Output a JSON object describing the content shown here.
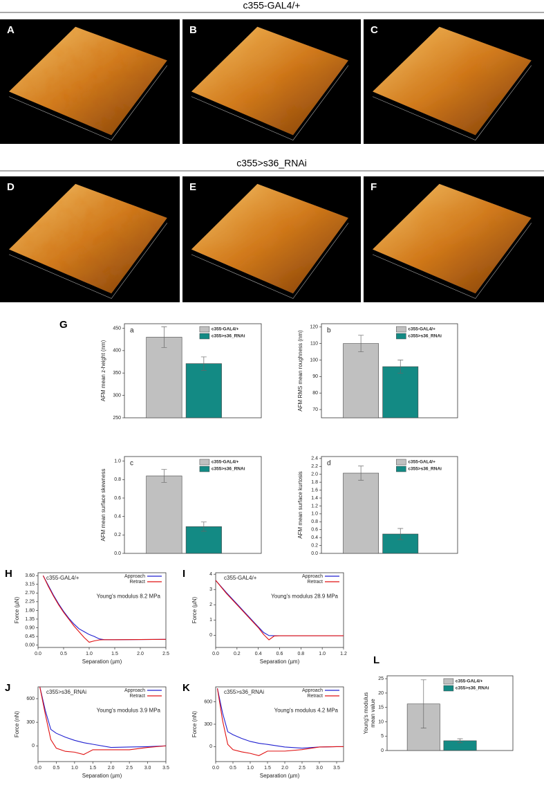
{
  "headers": [
    "c355-GAL4/+",
    "c355>s36_RNAi"
  ],
  "afm_panels": [
    "A",
    "B",
    "C",
    "D",
    "E",
    "F"
  ],
  "group_label": "G",
  "chart_data": [
    {
      "type": "bar",
      "label": "a",
      "ylabel": "AFM mean z-height (nm)",
      "categories": [
        null
      ],
      "series": [
        {
          "name": "c355-GAL4/+",
          "color": "#c0c0c0",
          "values": [
            430
          ],
          "errors": [
            23
          ]
        },
        {
          "name": "c355>s36_RNAi",
          "color": "#138a84",
          "values": [
            371
          ],
          "errors": [
            15
          ]
        }
      ],
      "ylim": [
        250,
        460
      ],
      "yticks": [
        250,
        300,
        350,
        400,
        450
      ]
    },
    {
      "type": "bar",
      "label": "b",
      "ylabel": "AFM RMS mean roughness (nm)",
      "categories": [
        null
      ],
      "series": [
        {
          "name": "c355-GAL4/+",
          "color": "#c0c0c0",
          "values": [
            110
          ],
          "errors": [
            5
          ]
        },
        {
          "name": "c355>s36_RNAi",
          "color": "#138a84",
          "values": [
            96
          ],
          "errors": [
            4
          ]
        }
      ],
      "ylim": [
        65,
        122
      ],
      "yticks": [
        70,
        80,
        90,
        100,
        110,
        120
      ]
    },
    {
      "type": "bar",
      "label": "c",
      "ylabel": "AFM mean surface skewness",
      "categories": [
        null
      ],
      "series": [
        {
          "name": "c355-GAL4/+",
          "color": "#c0c0c0",
          "values": [
            0.84
          ],
          "errors": [
            0.07
          ]
        },
        {
          "name": "c355>s36_RNAi",
          "color": "#138a84",
          "values": [
            0.29
          ],
          "errors": [
            0.05
          ]
        }
      ],
      "ylim": [
        0,
        1.05
      ],
      "yticks": [
        {
          "value": 0,
          "label": "0.0"
        },
        0.2,
        0.4,
        0.6,
        0.8,
        {
          "value": 1,
          "label": "1.0"
        }
      ]
    },
    {
      "type": "bar",
      "label": "d",
      "ylabel": "AFM mean surface kurtosis",
      "categories": [
        null
      ],
      "series": [
        {
          "name": "c355-GAL4/+",
          "color": "#c0c0c0",
          "values": [
            2.03
          ],
          "errors": [
            0.18
          ]
        },
        {
          "name": "c355>s36_RNAi",
          "color": "#138a84",
          "values": [
            0.49
          ],
          "errors": [
            0.14
          ]
        }
      ],
      "ylim": [
        0,
        2.45
      ],
      "yticks": [
        {
          "value": 0,
          "label": "0.0"
        },
        0.2,
        0.4,
        0.6,
        0.8,
        {
          "value": 1,
          "label": "1.0"
        },
        1.2,
        1.4,
        1.6,
        1.8,
        {
          "value": 2,
          "label": "2.0"
        },
        2.2,
        2.4
      ]
    },
    {
      "type": "line",
      "panel": "H",
      "xlabel": "Separation (µm)",
      "ylabel": "Force (µN)",
      "annotations": [
        "c355-GAL4/+",
        "Young's modulus 8.2 MPa"
      ],
      "x": [
        0.1,
        0.2,
        0.3,
        0.4,
        0.5,
        0.6,
        0.7,
        0.8,
        0.9,
        1.0,
        1.1,
        1.2,
        1.3,
        1.5,
        2.0,
        2.5
      ],
      "series": [
        {
          "name": "Approach",
          "color": "#1f1fd0",
          "values": [
            3.6,
            3.1,
            2.6,
            2.15,
            1.75,
            1.4,
            1.1,
            0.85,
            0.7,
            0.55,
            0.45,
            0.32,
            0.28,
            0.28,
            0.29,
            0.3
          ]
        },
        {
          "name": "Retract",
          "color": "#e01010",
          "values": [
            3.6,
            3.05,
            2.55,
            2.1,
            1.7,
            1.35,
            1.0,
            0.7,
            0.4,
            0.15,
            0.22,
            0.27,
            0.28,
            0.28,
            0.29,
            0.3
          ]
        }
      ],
      "xlim": [
        0,
        2.5
      ],
      "xticks": [
        {
          "value": 0,
          "label": "0.0"
        },
        0.5,
        {
          "value": 1,
          "label": "1.0"
        },
        1.5,
        {
          "value": 2,
          "label": "2.0"
        },
        2.5
      ],
      "ylim": [
        -0.12,
        3.75
      ],
      "yticks": [
        {
          "value": 0,
          "label": "0.00"
        },
        0.45,
        {
          "value": 0.9,
          "label": "0.90"
        },
        1.35,
        {
          "value": 1.8,
          "label": "1.80"
        },
        2.25,
        {
          "value": 2.7,
          "label": "2.70"
        },
        3.15,
        {
          "value": 3.6,
          "label": "3.60"
        }
      ]
    },
    {
      "type": "line",
      "panel": "I",
      "xlabel": "Separation (µm)",
      "ylabel": "Force (µN)",
      "annotations": [
        "c355-GAL4/+",
        "Young's modulus 28.9 MPa"
      ],
      "x": [
        0,
        0.1,
        0.2,
        0.3,
        0.4,
        0.45,
        0.5,
        0.55,
        0.6,
        0.8,
        1.0,
        1.2
      ],
      "series": [
        {
          "name": "Approach",
          "color": "#1f1fd0",
          "values": [
            3.6,
            2.8,
            2.05,
            1.3,
            0.55,
            0.18,
            -0.02,
            -0.03,
            -0.03,
            -0.03,
            -0.03,
            -0.03
          ]
        },
        {
          "name": "Retract",
          "color": "#e01010",
          "values": [
            3.6,
            2.75,
            2.0,
            1.25,
            0.5,
            0.05,
            -0.3,
            -0.05,
            -0.03,
            -0.03,
            -0.03,
            -0.03
          ]
        }
      ],
      "xlim": [
        0,
        1.2
      ],
      "xticks": [
        {
          "value": 0,
          "label": "0.0"
        },
        0.2,
        0.4,
        0.6,
        0.8,
        {
          "value": 1,
          "label": "1.0"
        },
        1.2
      ],
      "ylim": [
        -0.8,
        4.1
      ],
      "yticks": [
        0,
        1,
        2,
        3,
        4
      ]
    },
    {
      "type": "line",
      "panel": "J",
      "xlabel": "Separation (µm)",
      "ylabel": "Force (nN)",
      "annotations": [
        "c355>s36_RNAi",
        "Young's modulus 3.9 MPa"
      ],
      "x": [
        0.05,
        0.2,
        0.35,
        0.5,
        0.75,
        1.0,
        1.25,
        1.5,
        2.0,
        2.5,
        3.0,
        3.5
      ],
      "series": [
        {
          "name": "Approach",
          "color": "#1f1fd0",
          "values": [
            750,
            450,
            210,
            160,
            110,
            70,
            40,
            20,
            -20,
            -15,
            -10,
            0
          ]
        },
        {
          "name": "Retract",
          "color": "#e01010",
          "values": [
            750,
            400,
            80,
            -30,
            -70,
            -80,
            -110,
            -50,
            -50,
            -50,
            -20,
            0
          ]
        }
      ],
      "xlim": [
        0,
        3.5
      ],
      "xticks": [
        {
          "value": 0,
          "label": "0.0"
        },
        0.5,
        {
          "value": 1,
          "label": "1.0"
        },
        1.5,
        {
          "value": 2,
          "label": "2.0"
        },
        2.5,
        {
          "value": 3,
          "label": "3.0"
        },
        3.5
      ],
      "ylim": [
        -200,
        750
      ],
      "yticks": [
        0,
        300,
        600
      ]
    },
    {
      "type": "line",
      "panel": "K",
      "xlabel": "Separation (µm)",
      "ylabel": "Force (nN)",
      "annotations": [
        "c355>s36_RNAi",
        "Young's modulus 4.2 MPa"
      ],
      "x": [
        0.05,
        0.2,
        0.35,
        0.5,
        0.75,
        1.0,
        1.25,
        1.5,
        2.0,
        2.5,
        3.0,
        3.5,
        3.7
      ],
      "series": [
        {
          "name": "Approach",
          "color": "#1f1fd0",
          "values": [
            780,
            450,
            200,
            160,
            110,
            70,
            45,
            30,
            -5,
            -20,
            -5,
            0,
            0
          ]
        },
        {
          "name": "Retract",
          "color": "#e01010",
          "values": [
            780,
            350,
            30,
            -40,
            -70,
            -90,
            -120,
            -60,
            -60,
            -40,
            -5,
            0,
            0
          ]
        }
      ],
      "xlim": [
        0,
        3.7
      ],
      "xticks": [
        {
          "value": 0,
          "label": "0.0"
        },
        0.5,
        {
          "value": 1,
          "label": "1.0"
        },
        1.5,
        {
          "value": 2,
          "label": "2.0"
        },
        2.5,
        {
          "value": 3,
          "label": "3.0"
        },
        3.5
      ],
      "ylim": [
        -200,
        800
      ],
      "yticks": [
        0,
        300,
        600
      ]
    },
    {
      "type": "bar",
      "panel": "L",
      "ylabel": [
        "Young's modulus",
        "mean value"
      ],
      "categories": [
        null
      ],
      "series": [
        {
          "name": "c355-GAL4/+",
          "color": "#c0c0c0",
          "values": [
            16.2
          ],
          "errors": [
            8.4
          ]
        },
        {
          "name": "c355>s36_RNAi",
          "color": "#138a84",
          "values": [
            3.4
          ],
          "errors": [
            0.7
          ]
        }
      ],
      "ylim": [
        0,
        26
      ],
      "yticks": [
        0,
        5,
        10,
        15,
        20,
        25
      ]
    }
  ]
}
